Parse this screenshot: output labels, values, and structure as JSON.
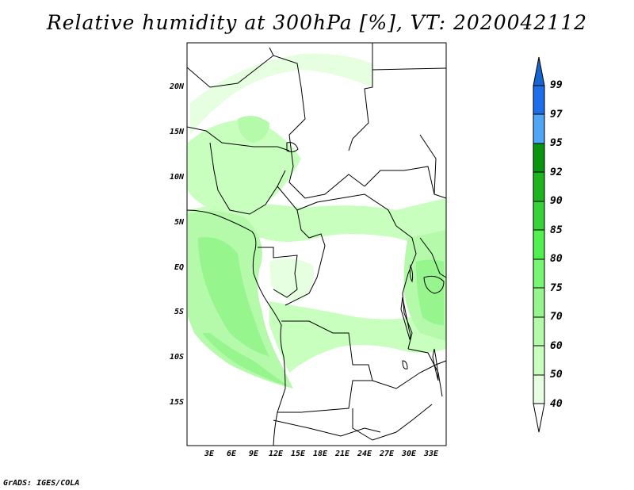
{
  "title": "Relative humidity at 300hPa [%], VT: 2020042112",
  "credit": "GrADS: IGES/COLA",
  "map": {
    "variable": "Relative humidity",
    "level": "300hPa",
    "units": "%",
    "valid_time": "2020042112",
    "lat_labels": [
      "20N",
      "15N",
      "10N",
      "5N",
      "EQ",
      "5S",
      "10S",
      "15S"
    ],
    "lon_labels": [
      "3E",
      "6E",
      "9E",
      "12E",
      "15E",
      "18E",
      "21E",
      "24E",
      "27E",
      "30E",
      "33E"
    ]
  },
  "colorbar": {
    "labels": [
      "99",
      "97",
      "95",
      "92",
      "90",
      "85",
      "80",
      "75",
      "70",
      "60",
      "50",
      "40"
    ],
    "colors": {
      "above_99": "#1464d2",
      "97_99": "#1e6eeb",
      "95_97": "#50a5f5",
      "92_95": "#0a9610",
      "90_92": "#1eb41e",
      "85_90": "#37d23c",
      "80_85": "#50f050",
      "75_80": "#78f573",
      "70_75": "#96f58c",
      "60_70": "#b4faaa",
      "50_60": "#c8ffbe",
      "40_50": "#e6ffe1",
      "below_40": "#ffffff"
    }
  }
}
